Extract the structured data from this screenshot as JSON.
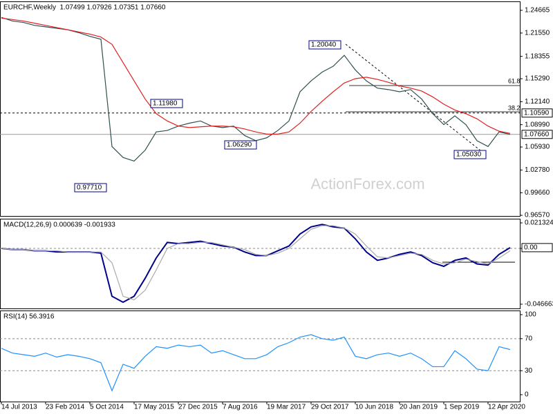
{
  "chart_data": [
    {
      "type": "line",
      "title": "EURCHF,Weekly  1.07499 1.07926 1.07351 1.07660",
      "watermark": "ActionForex.com",
      "ylim": [
        0.9648,
        1.2589
      ],
      "yticks": [
        1.24665,
        {
          "value": 1.2155,
          "label": "1.21550"
        },
        1.18355,
        {
          "value": 1.1529,
          "label": "1.15290"
        },
        {
          "value": 1.1214,
          "label": "1.12140"
        },
        {
          "value": 1.0899,
          "label": "1.08990"
        },
        {
          "value": 1.0593,
          "label": "1.05930"
        },
        {
          "value": 1.0278,
          "label": "1.02780"
        },
        {
          "value": 0.9966,
          "label": "0.99660"
        },
        {
          "value": 0.9657,
          "label": "0.96570"
        }
      ],
      "series": [
        {
          "color": "#2f4f4f",
          "values": [
            1.237,
            1.232,
            1.23,
            1.226,
            1.224,
            1.222,
            1.22,
            1.216,
            1.211,
            1.207,
            1.06,
            1.045,
            1.04,
            1.055,
            1.08,
            1.082,
            1.088,
            1.092,
            1.095,
            1.088,
            1.086,
            1.088,
            1.075,
            1.068,
            1.072,
            1.082,
            1.095,
            1.135,
            1.15,
            1.162,
            1.17,
            1.185,
            1.165,
            1.15,
            1.14,
            1.138,
            1.135,
            1.138,
            1.125,
            1.105,
            1.09,
            1.102,
            1.09,
            1.068,
            1.06,
            1.08,
            1.0766
          ]
        },
        {
          "color": "#e02020",
          "values": [
            1.236,
            1.234,
            1.232,
            1.229,
            1.226,
            1.223,
            1.22,
            1.217,
            1.214,
            1.21,
            1.2,
            1.175,
            1.15,
            1.125,
            1.105,
            1.095,
            1.088,
            1.086,
            1.087,
            1.088,
            1.088,
            1.087,
            1.084,
            1.08,
            1.077,
            1.077,
            1.08,
            1.092,
            1.108,
            1.122,
            1.135,
            1.147,
            1.153,
            1.155,
            1.152,
            1.148,
            1.143,
            1.14,
            1.136,
            1.128,
            1.118,
            1.11,
            1.105,
            1.098,
            1.088,
            1.081,
            1.078
          ]
        }
      ],
      "markers": [
        {
          "value": 1.1059,
          "label": "1.10590",
          "dashed": true
        },
        {
          "value": 1.0766,
          "label": "1.07660",
          "dashed": false
        }
      ],
      "annotations": [
        "1.20040",
        "1.11980",
        "1.06290",
        "0.97710",
        "1.05030"
      ],
      "fib_labels": [
        "61.8",
        "38.2"
      ]
    },
    {
      "type": "line",
      "title": "MACD(12,26,9) 0.000639 -0.001933",
      "ylim": [
        -0.0502,
        0.0248
      ],
      "yticks": [
        0.021324,
        {
          "value": 0,
          "label": "0.00"
        },
        -0.046663
      ],
      "levels": [
        0
      ],
      "markers": [
        {
          "value": 0.000639,
          "label": "0.00",
          "dashed": false
        }
      ],
      "series": [
        {
          "color": "#00008b",
          "values": [
            0.0,
            -0.001,
            -0.001,
            -0.002,
            -0.002,
            -0.003,
            -0.003,
            -0.003,
            -0.003,
            -0.004,
            -0.04,
            -0.045,
            -0.04,
            -0.025,
            -0.008,
            0.005,
            0.004,
            0.005,
            0.006,
            0.004,
            0.002,
            0.001,
            -0.003,
            -0.006,
            -0.006,
            -0.002,
            0.002,
            0.012,
            0.018,
            0.02,
            0.018,
            0.017,
            0.008,
            -0.003,
            -0.01,
            -0.008,
            -0.005,
            -0.003,
            -0.006,
            -0.012,
            -0.015,
            -0.01,
            -0.008,
            -0.013,
            -0.014,
            -0.005,
            0.000639
          ]
        },
        {
          "color": "#a9a9a9",
          "values": [
            0.0,
            -0.001,
            -0.001,
            -0.002,
            -0.002,
            -0.002,
            -0.003,
            -0.003,
            -0.003,
            -0.003,
            -0.012,
            -0.04,
            -0.043,
            -0.035,
            -0.018,
            0.0,
            0.004,
            0.004,
            0.005,
            0.005,
            0.003,
            0.001,
            -0.001,
            -0.005,
            -0.006,
            -0.004,
            0.0,
            0.008,
            0.016,
            0.019,
            0.019,
            0.017,
            0.012,
            0.002,
            -0.007,
            -0.008,
            -0.006,
            -0.004,
            -0.005,
            -0.01,
            -0.013,
            -0.012,
            -0.009,
            -0.011,
            -0.013,
            -0.008,
            -0.001933
          ]
        }
      ]
    },
    {
      "type": "line",
      "title": "RSI(14) 56.3916",
      "ylim": [
        -8.6,
        105.2
      ],
      "yticks": [
        100,
        70,
        30,
        0
      ],
      "levels": [
        70,
        30
      ],
      "series": [
        {
          "color": "#1e90ff",
          "values": [
            58,
            52,
            50,
            48,
            52,
            47,
            50,
            48,
            45,
            40,
            5,
            38,
            33,
            48,
            60,
            58,
            62,
            60,
            62,
            52,
            55,
            50,
            45,
            45,
            50,
            60,
            65,
            72,
            75,
            70,
            68,
            72,
            48,
            45,
            50,
            52,
            48,
            52,
            45,
            35,
            35,
            55,
            45,
            32,
            30,
            60,
            56.3916
          ]
        }
      ],
      "categories": [
        "14 Jul 2013",
        null,
        null,
        null,
        "23 Feb 2014",
        null,
        null,
        null,
        "5 Oct 2014",
        null,
        null,
        null,
        "17 May 2015",
        null,
        null,
        null,
        "27 Dec 2015",
        null,
        null,
        null,
        "7 Aug 2016",
        null,
        null,
        null,
        "19 Mar 2017",
        null,
        null,
        null,
        "29 Oct 2017",
        null,
        null,
        null,
        "10 Jun 2018",
        null,
        null,
        null,
        "20 Jan 2019",
        null,
        null,
        null,
        "1 Sep 2019",
        null,
        null,
        null,
        "12 Apr 2020",
        null,
        null
      ]
    }
  ]
}
